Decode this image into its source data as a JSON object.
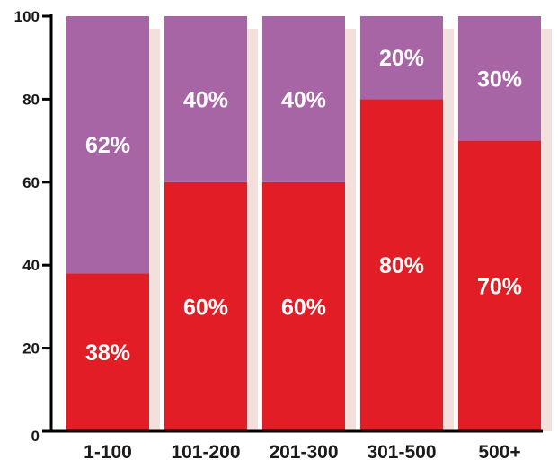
{
  "chart_data": {
    "type": "bar",
    "stacked": true,
    "categories": [
      "1-100",
      "101-200",
      "201-300",
      "301-500",
      "500+"
    ],
    "series": [
      {
        "values": [
          38,
          60,
          60,
          80,
          70
        ],
        "labels": [
          "38%",
          "60%",
          "60%",
          "80%",
          "70%"
        ],
        "color": "#e21d25"
      },
      {
        "values": [
          62,
          40,
          40,
          20,
          30
        ],
        "labels": [
          "62%",
          "40%",
          "40%",
          "20%",
          "30%"
        ],
        "color": "#a865a5"
      }
    ],
    "y_ticks": [
      "0",
      "20",
      "40",
      "60",
      "80",
      "100"
    ],
    "ylim": [
      0,
      100
    ],
    "grid": false,
    "colors": {
      "axis": "#000000",
      "shadow": "#eed1cd",
      "label_text": "#ffffff",
      "tick_text": "#1a1a1a"
    }
  }
}
